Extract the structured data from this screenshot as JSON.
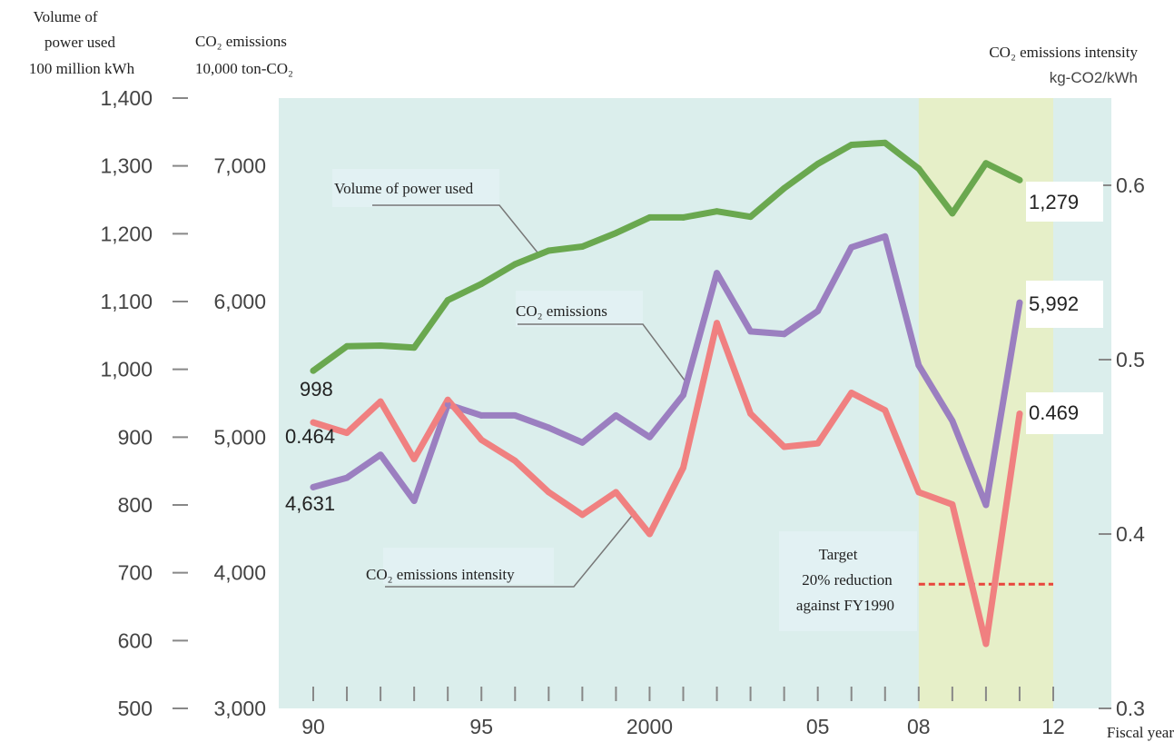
{
  "headers": {
    "power_title_line1": "Volume of",
    "power_title_line2": "power used",
    "power_unit": "100 million kWh",
    "co2_title": "CO₂ emissions",
    "co2_unit": "10,000 ton-CO₂",
    "intensity_title": "CO₂ emissions intensity",
    "intensity_unit": "kg-CO2/kWh",
    "x_axis_label": "Fiscal year"
  },
  "callouts": {
    "power": "Volume of power used",
    "co2": "CO₂ emissions",
    "intensity": "CO₂ emissions intensity",
    "target_line1": "Target",
    "target_line2": "20% reduction",
    "target_line3": "against FY1990"
  },
  "colors": {
    "background": "#dbeeec",
    "highlight": "#e6efc8",
    "power": "#6aa84f",
    "co2": "#9b7fc0",
    "intensity": "#f08080",
    "target": "#e8453c",
    "axis": "#888888"
  },
  "chart_data": {
    "type": "line",
    "x": [
      1990,
      1991,
      1992,
      1993,
      1994,
      1995,
      1996,
      1997,
      1998,
      1999,
      2000,
      2001,
      2002,
      2003,
      2004,
      2005,
      2006,
      2007,
      2008,
      2009,
      2010,
      2011
    ],
    "x_tick_labels": [
      "90",
      "95",
      "2000",
      "05",
      "08",
      "12"
    ],
    "x_tick_years": [
      1990,
      1995,
      2000,
      2005,
      2008,
      2012
    ],
    "xlim": [
      1990,
      2012
    ],
    "highlight_range": [
      2008,
      2012
    ],
    "axes": {
      "power": {
        "ticks": [
          "1,400",
          "1,300",
          "1,200",
          "1,100",
          "1,000",
          "900",
          "800",
          "700",
          "600",
          "500"
        ],
        "ylim": [
          500,
          1400
        ]
      },
      "co2": {
        "ticks": [
          "7,000",
          "6,000",
          "5,000",
          "4,000",
          "3,000"
        ],
        "ylim": [
          3000,
          7500
        ]
      },
      "intensity": {
        "ticks": [
          "0.6",
          "0.5",
          "0.4",
          "0.3"
        ],
        "ylim": [
          0.3,
          0.65
        ]
      }
    },
    "series": [
      {
        "name": "Volume of power used",
        "axis": "power",
        "color": "#6aa84f",
        "values": [
          998,
          1034,
          1035,
          1032,
          1102,
          1126,
          1155,
          1175,
          1181,
          1201,
          1224,
          1224,
          1233,
          1225,
          1267,
          1303,
          1331,
          1334,
          1296,
          1230,
          1304,
          1279
        ]
      },
      {
        "name": "CO₂ emissions",
        "axis": "co2",
        "color": "#9b7fc0",
        "values": [
          4631,
          4700,
          4870,
          4530,
          5240,
          5160,
          5160,
          5070,
          4960,
          5160,
          5000,
          5310,
          6210,
          5780,
          5760,
          5930,
          6400,
          6480,
          5530,
          5120,
          4500,
          5992
        ]
      },
      {
        "name": "CO₂ emissions intensity",
        "axis": "intensity",
        "color": "#f08080",
        "values": [
          0.464,
          0.458,
          0.476,
          0.443,
          0.477,
          0.454,
          0.442,
          0.424,
          0.411,
          0.424,
          0.4,
          0.438,
          0.521,
          0.469,
          0.45,
          0.452,
          0.481,
          0.471,
          0.424,
          0.417,
          0.337,
          0.469
        ]
      }
    ],
    "value_labels": {
      "power_start": "998",
      "power_end": "1,279",
      "co2_start": "4,631",
      "co2_end": "5,992",
      "intensity_start": "0.464",
      "intensity_end": "0.469"
    },
    "target": {
      "label": "Target 20% reduction against FY1990",
      "intensity_value": 0.3712,
      "x_range": [
        2008,
        2012
      ]
    }
  }
}
